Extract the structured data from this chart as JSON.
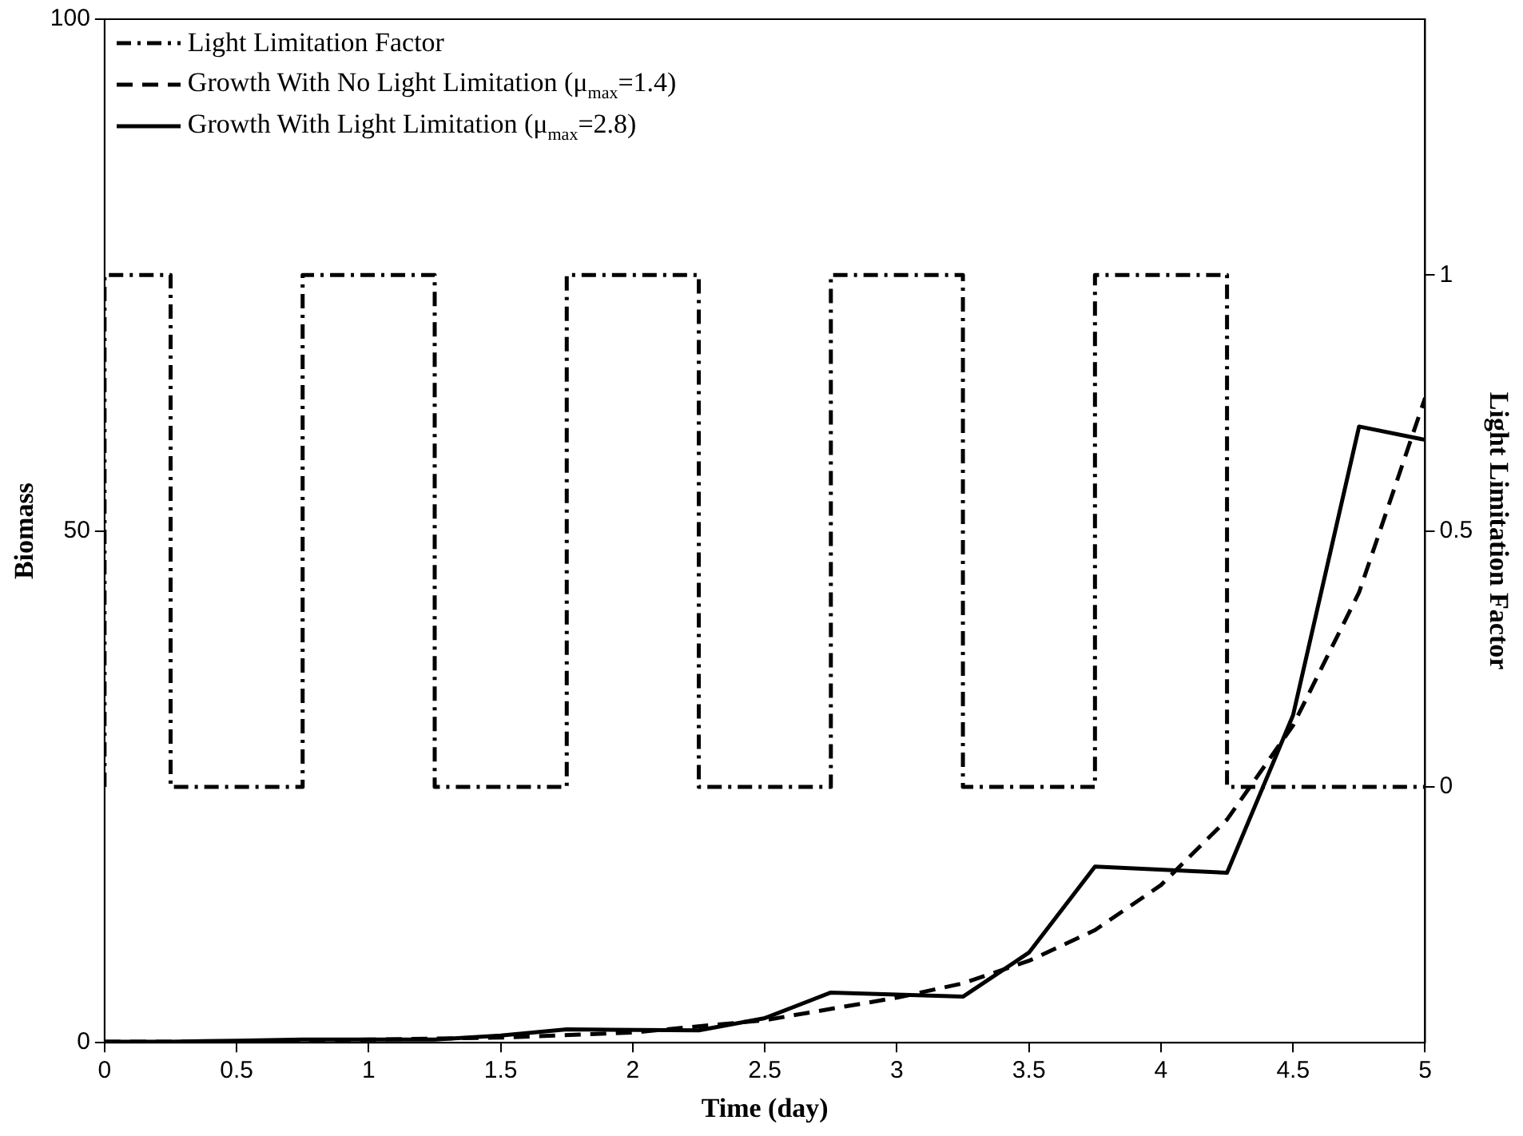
{
  "chart_data": {
    "type": "line",
    "xlabel": "Time (day)",
    "ylabel": "Biomass",
    "y2label": "Light Limitation Factor",
    "xlim": [
      0,
      5
    ],
    "xticks": [
      0,
      0.5,
      1,
      1.5,
      2,
      2.5,
      3,
      3.5,
      4,
      4.5,
      5
    ],
    "ylim": [
      0,
      100
    ],
    "yticks": [
      0,
      50,
      100
    ],
    "y2lim": [
      -0.5,
      1.5
    ],
    "y2ticks": [
      0,
      0.5,
      1
    ],
    "grid": false,
    "legend": "top left",
    "marker": "none",
    "series": [
      {
        "name": "Light Limitation Factor",
        "type": "step",
        "axis": "y2",
        "color": "#000000",
        "line_style": "dashdot",
        "x": [
          0,
          0.25,
          0.75,
          1.25,
          1.75,
          2.25,
          2.75,
          3.25,
          3.75,
          4.25,
          4.75,
          5
        ],
        "values": [
          0,
          1,
          0,
          1,
          0,
          1,
          0,
          1,
          0,
          1,
          0,
          0
        ]
      },
      {
        "name": "Growth With No Light Limitation (μ$_{max}$=1.4)",
        "color": "#000000",
        "line_style": "dashed",
        "x": [
          0,
          0.5,
          1,
          1.5,
          2,
          2.5,
          3,
          3.25,
          3.5,
          3.75,
          4,
          4.25,
          4.5,
          4.75,
          5
        ],
        "values": [
          0.1,
          0.1,
          0.3,
          0.5,
          1,
          2.2,
          4.4,
          5.8,
          8,
          11,
          15.4,
          21.8,
          31,
          44,
          63
        ]
      },
      {
        "name": "Growth With Light Limitation (μ$_{max}$=2.8)",
        "color": "#000000",
        "line_style": "solid",
        "x": [
          0,
          0.25,
          0.5,
          0.75,
          1.25,
          1.5,
          1.75,
          2.25,
          2.5,
          2.75,
          3.25,
          3.5,
          3.75,
          4.25,
          4.5,
          4.75,
          5
        ],
        "values": [
          0.1,
          0.1,
          0.2,
          0.3,
          0.3,
          0.7,
          1.3,
          1.2,
          2.4,
          4.9,
          4.5,
          8.8,
          17.2,
          16.6,
          32,
          60.2,
          58.9
        ]
      }
    ]
  }
}
